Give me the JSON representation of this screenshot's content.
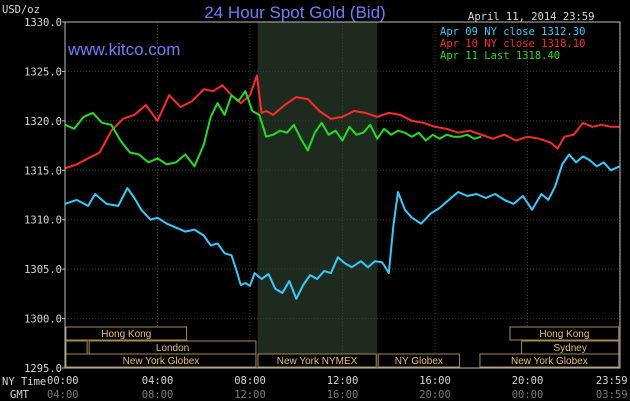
{
  "header": {
    "title": "24 Hour Spot Gold (Bid)",
    "date": "April 11, 2014 23:59",
    "site": "www.kitco.com",
    "unit": "USD/oz"
  },
  "legend": [
    {
      "label": "Apr 09 NY close 1312.30",
      "color": "#33ccff"
    },
    {
      "label": "Apr 10 NY close 1318.10",
      "color": "#ff2a2a"
    },
    {
      "label": "Apr 11 Last 1318.40",
      "color": "#22dd22"
    }
  ],
  "axis": {
    "row_label_ny": "NY Time",
    "row_label_gmt": "GMT",
    "ny_ticks": [
      "00:00",
      "04:00",
      "08:00",
      "12:00",
      "16:00",
      "20:00",
      "23:59"
    ],
    "gmt_ticks": [
      "04:00",
      "08:00",
      "12:00",
      "16:00",
      "20:00",
      "00:00",
      "03:59"
    ]
  },
  "sessions": [
    {
      "label": "Hong Kong",
      "row": 1
    },
    {
      "label": "",
      "row": 2
    },
    {
      "label": "London",
      "row": 2
    },
    {
      "label": "New York Globex",
      "row": 3
    },
    {
      "label": "New York NYMEX",
      "row": 3
    },
    {
      "label": "NY Globex",
      "row": 3
    },
    {
      "label": "Hong Kong",
      "row": 1
    },
    {
      "label": "Sydney",
      "row": 2
    },
    {
      "label": "New York Globex",
      "row": 3
    }
  ],
  "chart_data": {
    "type": "line",
    "title": "24 Hour Spot Gold (Bid)",
    "ylabel": "USD/oz",
    "ylim": [
      1295,
      1330
    ],
    "yticks": [
      "1295.0",
      "1300.0",
      "1305.0",
      "1310.0",
      "1315.0",
      "1320.0",
      "1325.0",
      "1330.0"
    ],
    "xlim_hours": [
      0,
      24
    ],
    "shaded_hours": [
      8.33,
      13.5
    ],
    "series": [
      {
        "name": "Apr 09 NY close 1312.30",
        "color": "#33ccff",
        "x": [
          0,
          0.5,
          1,
          1.3,
          1.8,
          2.3,
          2.7,
          3,
          3.3,
          3.7,
          4,
          4.4,
          4.8,
          5.2,
          5.6,
          6,
          6.3,
          6.6,
          6.9,
          7.2,
          7.4,
          7.6,
          7.8,
          8,
          8.2,
          8.5,
          8.8,
          9.1,
          9.4,
          9.7,
          10,
          10.3,
          10.6,
          10.9,
          11.2,
          11.5,
          11.8,
          12.1,
          12.4,
          12.8,
          13.1,
          13.4,
          13.7,
          13.8,
          14,
          14.2,
          14.4,
          14.7,
          15,
          15.4,
          15.8,
          16.2,
          16.6,
          17,
          17.4,
          17.8,
          18.2,
          18.6,
          19,
          19.4,
          19.8,
          20.2,
          20.6,
          20.9,
          21.2,
          21.5,
          21.8,
          22.1,
          22.4,
          22.7,
          23,
          23.3,
          23.6,
          23.99
        ],
        "values": [
          1311.6,
          1312.0,
          1311.4,
          1312.6,
          1311.6,
          1311.4,
          1313.2,
          1312.2,
          1311.0,
          1310.0,
          1310.2,
          1309.6,
          1309.2,
          1308.8,
          1309.0,
          1308.4,
          1307.4,
          1307.6,
          1306.6,
          1306.4,
          1305.0,
          1303.4,
          1303.6,
          1303.3,
          1304.6,
          1304.0,
          1304.5,
          1303.0,
          1302.6,
          1303.8,
          1302.0,
          1303.4,
          1304.4,
          1304.0,
          1304.8,
          1304.6,
          1306.2,
          1305.6,
          1305.2,
          1305.8,
          1305.2,
          1305.8,
          1305.7,
          1305.4,
          1304.6,
          1309.4,
          1312.8,
          1311.0,
          1310.2,
          1309.6,
          1310.6,
          1311.2,
          1312.0,
          1312.8,
          1312.4,
          1312.6,
          1312.2,
          1312.6,
          1312.0,
          1311.6,
          1312.4,
          1311.0,
          1312.6,
          1312.0,
          1313.4,
          1315.6,
          1316.6,
          1315.8,
          1316.4,
          1316.0,
          1315.4,
          1315.8,
          1315.0,
          1315.4
        ]
      },
      {
        "name": "Apr 10 NY close 1318.10",
        "color": "#ff2a2a",
        "x": [
          0,
          0.5,
          1,
          1.5,
          2,
          2.5,
          3,
          3.5,
          4,
          4.5,
          5,
          5.5,
          6,
          6.4,
          6.8,
          7.2,
          7.6,
          8,
          8.3,
          8.5,
          8.7,
          9,
          9.5,
          10,
          10.5,
          11,
          11.5,
          12,
          12.5,
          13,
          13.5,
          14,
          14.5,
          15,
          15.5,
          16,
          16.5,
          17,
          17.5,
          18,
          18.5,
          19,
          19.5,
          20,
          20.5,
          21,
          21.3,
          21.6,
          22,
          22.4,
          22.8,
          23.2,
          23.6,
          23.99
        ],
        "values": [
          1315.2,
          1315.6,
          1316.2,
          1316.8,
          1319.0,
          1320.2,
          1320.6,
          1321.6,
          1320.0,
          1322.6,
          1321.4,
          1322.0,
          1323.2,
          1323.0,
          1323.6,
          1322.6,
          1321.8,
          1322.6,
          1324.6,
          1320.8,
          1321.0,
          1320.6,
          1321.6,
          1322.4,
          1322.2,
          1321.0,
          1320.2,
          1320.4,
          1321.0,
          1320.8,
          1320.4,
          1320.8,
          1320.6,
          1320.0,
          1319.8,
          1319.4,
          1319.2,
          1318.8,
          1319.0,
          1318.6,
          1318.2,
          1318.6,
          1318.0,
          1318.4,
          1318.2,
          1317.8,
          1317.2,
          1318.4,
          1318.6,
          1319.8,
          1319.4,
          1319.6,
          1319.4,
          1319.4
        ]
      },
      {
        "name": "Apr 11 Last 1318.40",
        "color": "#22dd22",
        "x": [
          0,
          0.4,
          0.8,
          1.2,
          1.6,
          2,
          2.4,
          2.8,
          3.2,
          3.6,
          4,
          4.4,
          4.8,
          5.2,
          5.6,
          6,
          6.3,
          6.6,
          6.9,
          7.2,
          7.5,
          7.8,
          8.1,
          8.4,
          8.7,
          9,
          9.3,
          9.6,
          9.9,
          10.2,
          10.5,
          10.8,
          11.1,
          11.4,
          11.7,
          12,
          12.3,
          12.6,
          12.9,
          13.2,
          13.5,
          13.8,
          14.1,
          14.4,
          14.7,
          15,
          15.3,
          15.6,
          15.9,
          16.2,
          16.5,
          16.8,
          17.1,
          17.4,
          17.7,
          18
        ],
        "values": [
          1319.6,
          1319.2,
          1320.4,
          1320.8,
          1319.8,
          1319.6,
          1318.0,
          1316.8,
          1316.6,
          1315.8,
          1316.2,
          1315.6,
          1315.8,
          1316.6,
          1315.4,
          1317.6,
          1320.4,
          1321.8,
          1320.6,
          1322.6,
          1322.0,
          1323.0,
          1321.0,
          1320.6,
          1318.4,
          1318.6,
          1319.0,
          1318.8,
          1319.6,
          1318.2,
          1317.0,
          1318.8,
          1319.8,
          1318.6,
          1319.0,
          1318.0,
          1319.4,
          1318.6,
          1318.8,
          1319.6,
          1318.2,
          1319.2,
          1318.6,
          1319.0,
          1318.8,
          1318.4,
          1318.8,
          1318.0,
          1318.6,
          1318.2,
          1318.6,
          1318.4,
          1318.4,
          1318.6,
          1318.2,
          1318.4
        ]
      }
    ]
  }
}
